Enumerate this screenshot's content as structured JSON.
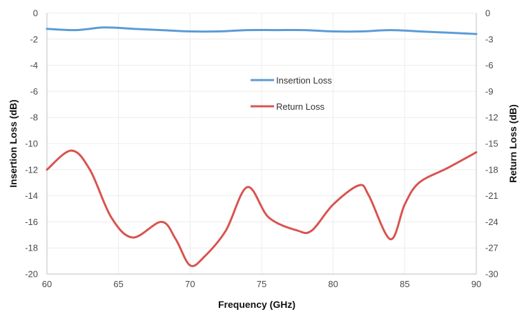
{
  "chart_data": {
    "type": "line",
    "xlabel": "Frequency (GHz)",
    "ylabel_left": "Insertion Loss (dB)",
    "ylabel_right": "Return Loss (dB)",
    "xlim": [
      60,
      90
    ],
    "ylim_left": [
      -20,
      0
    ],
    "ylim_right": [
      -30,
      0
    ],
    "x_ticks": [
      60,
      65,
      70,
      75,
      80,
      85,
      90
    ],
    "y_left_ticks": [
      0,
      -2,
      -4,
      -6,
      -8,
      -10,
      -12,
      -14,
      -16,
      -18,
      -20
    ],
    "y_right_ticks": [
      0,
      -3,
      -6,
      -9,
      -12,
      -15,
      -18,
      -21,
      -24,
      -27,
      -30
    ],
    "grid": true,
    "legend_position": "center",
    "series": [
      {
        "name": "Insertion Loss",
        "axis": "left",
        "color": "#5B9BD5",
        "x": [
          60,
          62,
          64,
          66,
          68,
          70,
          72,
          74,
          76,
          78,
          80,
          82,
          84,
          86,
          88,
          90
        ],
        "y": [
          -1.2,
          -1.3,
          -1.1,
          -1.2,
          -1.3,
          -1.4,
          -1.4,
          -1.3,
          -1.3,
          -1.3,
          -1.4,
          -1.4,
          -1.3,
          -1.4,
          -1.5,
          -1.6
        ]
      },
      {
        "name": "Return Loss",
        "axis": "right",
        "color": "#D9534F",
        "x": [
          60,
          61.7,
          63,
          64.5,
          66,
          68,
          69,
          70,
          71,
          72.5,
          74,
          75.5,
          77.5,
          78.5,
          80,
          81.8,
          82.5,
          84,
          85,
          86,
          88,
          90
        ],
        "y": [
          -18,
          -15.8,
          -18,
          -23.5,
          -25.8,
          -24,
          -26,
          -29,
          -28,
          -25,
          -20,
          -23.5,
          -25,
          -25,
          -22,
          -19.8,
          -21,
          -26,
          -22,
          -19.5,
          -17.8,
          -16
        ]
      }
    ]
  }
}
